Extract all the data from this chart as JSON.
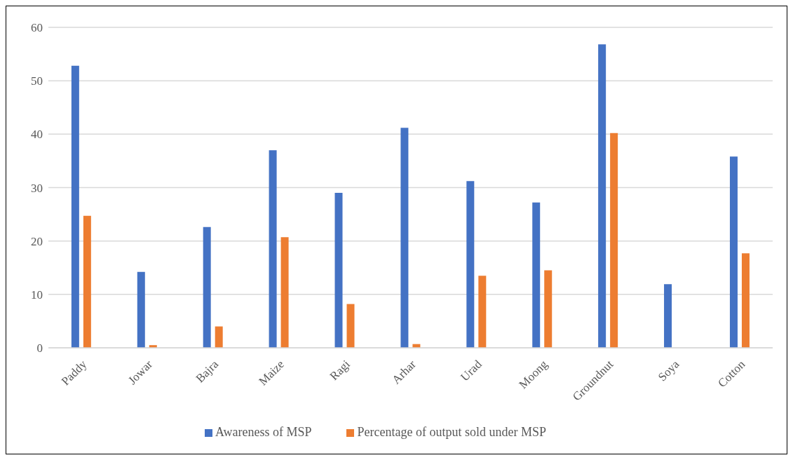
{
  "chart_data": {
    "type": "bar",
    "categories": [
      "Paddy",
      "Jowar",
      "Bajra",
      "Maize",
      "Ragi",
      "Arhar",
      "Urad",
      "Moong",
      "Groundnut",
      "Soya",
      "Cotton"
    ],
    "series": [
      {
        "name": "Awareness of MSP",
        "color": "#4472c4",
        "values": [
          52.8,
          14.2,
          22.6,
          37.0,
          29.0,
          41.2,
          31.2,
          27.2,
          56.8,
          11.9,
          35.8
        ]
      },
      {
        "name": "Percentage of output sold under MSP",
        "color": "#ed7d31",
        "values": [
          24.7,
          0.5,
          4.0,
          20.7,
          8.2,
          0.7,
          13.5,
          14.5,
          40.2,
          0,
          17.7
        ]
      }
    ],
    "ylim": [
      0,
      60
    ],
    "yticks": [
      0,
      10,
      20,
      30,
      40,
      50,
      60
    ],
    "grid": "y",
    "legend": "bottom"
  }
}
